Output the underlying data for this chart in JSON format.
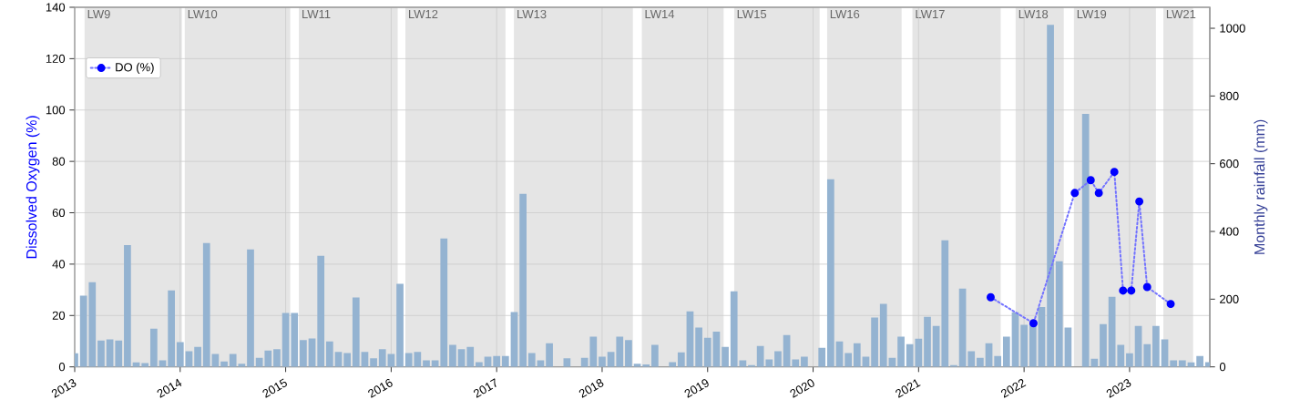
{
  "chart_data": {
    "type": "bar",
    "ylabel": "Dissolved Oxygen (%)",
    "y2label": "Monthly rainfall (mm)",
    "xlim": [
      "2013-01-01",
      "2023-10-05"
    ],
    "xticks": [
      "2013",
      "2014",
      "2015",
      "2016",
      "2017",
      "2018",
      "2019",
      "2020",
      "2021",
      "2022",
      "2023"
    ],
    "ylim": [
      0,
      140
    ],
    "yticks": [
      0,
      20,
      40,
      60,
      80,
      100,
      120,
      140
    ],
    "y2lim": [
      0,
      1062
    ],
    "y2ticks": [
      0,
      200,
      400,
      600,
      800,
      1000
    ],
    "grid": true,
    "legend": "top left",
    "bands": [
      {
        "axis": "x",
        "from": "2013-02-04",
        "to": "2014-01-07",
        "label": "LW9",
        "color": "#e5e5e5"
      },
      {
        "axis": "x",
        "from": "2014-01-17",
        "to": "2015-01-17",
        "label": "LW10",
        "color": "#e5e5e5"
      },
      {
        "axis": "x",
        "from": "2015-02-15",
        "to": "2016-01-24",
        "label": "LW11",
        "color": "#e5e5e5"
      },
      {
        "axis": "x",
        "from": "2016-02-19",
        "to": "2017-02-01",
        "label": "LW12",
        "color": "#e5e5e5"
      },
      {
        "axis": "x",
        "from": "2017-02-28",
        "to": "2018-04-16",
        "label": "LW13",
        "color": "#e5e5e5"
      },
      {
        "axis": "x",
        "from": "2018-05-17",
        "to": "2019-02-24",
        "label": "LW14",
        "color": "#e5e5e5"
      },
      {
        "axis": "x",
        "from": "2019-04-01",
        "to": "2020-01-24",
        "label": "LW15",
        "color": "#e5e5e5"
      },
      {
        "axis": "x",
        "from": "2020-02-18",
        "to": "2020-11-03",
        "label": "LW16",
        "color": "#e5e5e5"
      },
      {
        "axis": "x",
        "from": "2020-12-10",
        "to": "2021-10-12",
        "label": "LW17",
        "color": "#e5e5e5"
      },
      {
        "axis": "x",
        "from": "2021-12-02",
        "to": "2022-05-17",
        "label": "LW18",
        "color": "#e5e5e5"
      },
      {
        "axis": "x",
        "from": "2022-06-21",
        "to": "2023-04-01",
        "label": "LW19",
        "color": "#e5e5e5"
      },
      {
        "axis": "x",
        "from": "2023-04-26",
        "to": "2023-08-08",
        "label": "LW21",
        "color": "#e5e5e5"
      }
    ],
    "series": [
      {
        "axis": "y2",
        "color": "#94b3d1",
        "x": [
          "2013-01",
          "2013-02",
          "2013-03",
          "2013-04",
          "2013-05",
          "2013-06",
          "2013-07",
          "2013-08",
          "2013-09",
          "2013-10",
          "2013-11",
          "2013-12",
          "2014-01",
          "2014-02",
          "2014-03",
          "2014-04",
          "2014-05",
          "2014-06",
          "2014-07",
          "2014-08",
          "2014-09",
          "2014-10",
          "2014-11",
          "2014-12",
          "2015-01",
          "2015-02",
          "2015-03",
          "2015-04",
          "2015-05",
          "2015-06",
          "2015-07",
          "2015-08",
          "2015-09",
          "2015-10",
          "2015-11",
          "2015-12",
          "2016-01",
          "2016-02",
          "2016-03",
          "2016-04",
          "2016-05",
          "2016-06",
          "2016-07",
          "2016-08",
          "2016-09",
          "2016-10",
          "2016-11",
          "2016-12",
          "2017-01",
          "2017-02",
          "2017-03",
          "2017-04",
          "2017-05",
          "2017-06",
          "2017-07",
          "2017-08",
          "2017-09",
          "2017-10",
          "2017-11",
          "2017-12",
          "2018-01",
          "2018-02",
          "2018-03",
          "2018-04",
          "2018-05",
          "2018-06",
          "2018-07",
          "2018-08",
          "2018-09",
          "2018-10",
          "2018-11",
          "2018-12",
          "2019-01",
          "2019-02",
          "2019-03",
          "2019-04",
          "2019-05",
          "2019-06",
          "2019-07",
          "2019-08",
          "2019-09",
          "2019-10",
          "2019-11",
          "2019-12",
          "2020-01",
          "2020-02",
          "2020-03",
          "2020-04",
          "2020-05",
          "2020-06",
          "2020-07",
          "2020-08",
          "2020-09",
          "2020-10",
          "2020-11",
          "2020-12",
          "2021-01",
          "2021-02",
          "2021-03",
          "2021-04",
          "2021-05",
          "2021-06",
          "2021-07",
          "2021-08",
          "2021-09",
          "2021-10",
          "2021-11",
          "2021-12",
          "2022-01",
          "2022-02",
          "2022-03",
          "2022-04",
          "2022-05",
          "2022-06",
          "2022-07",
          "2022-08",
          "2022-09",
          "2022-10",
          "2022-11",
          "2022-12",
          "2023-01",
          "2023-02",
          "2023-03",
          "2023-04",
          "2023-05",
          "2023-06",
          "2023-07",
          "2023-08",
          "2023-09",
          "2023-10"
        ],
        "values": [
          40,
          210,
          250,
          78,
          81,
          78,
          360,
          13,
          11,
          113,
          19,
          226,
          73,
          46,
          59,
          366,
          38,
          16,
          38,
          9,
          347,
          27,
          48,
          52,
          159,
          159,
          79,
          84,
          328,
          75,
          44,
          41,
          205,
          44,
          25,
          52,
          38,
          245,
          41,
          44,
          19,
          19,
          379,
          65,
          52,
          59,
          14,
          30,
          32,
          32,
          162,
          511,
          41,
          19,
          70,
          0,
          25,
          0,
          27,
          89,
          30,
          44,
          89,
          79,
          9,
          7,
          65,
          0,
          14,
          43,
          164,
          116,
          86,
          104,
          59,
          223,
          19,
          5,
          62,
          22,
          46,
          94,
          22,
          30,
          0,
          56,
          554,
          75,
          41,
          70,
          30,
          146,
          186,
          27,
          89,
          67,
          83,
          148,
          121,
          374,
          5,
          231,
          46,
          27,
          70,
          32,
          89,
          161,
          124,
          129,
          177,
          1010,
          312,
          116,
          0,
          747,
          24,
          126,
          207,
          65,
          40,
          121,
          67,
          121,
          81,
          19,
          19,
          13,
          32,
          14
        ]
      },
      {
        "type": "line",
        "name": "DO (%)",
        "color": "#0000ff",
        "marker": "circle",
        "line_style": "dotted",
        "x": [
          "2021-09-07",
          "2022-02-03",
          "2022-06-24",
          "2022-08-19",
          "2022-09-16",
          "2022-11-09",
          "2022-12-09",
          "2023-01-07",
          "2023-02-04",
          "2023-03-01",
          "2023-05-22"
        ],
        "values": [
          27.1,
          17.0,
          67.7,
          72.7,
          67.7,
          75.9,
          29.7,
          29.7,
          64.4,
          31.1,
          24.5
        ]
      }
    ]
  }
}
